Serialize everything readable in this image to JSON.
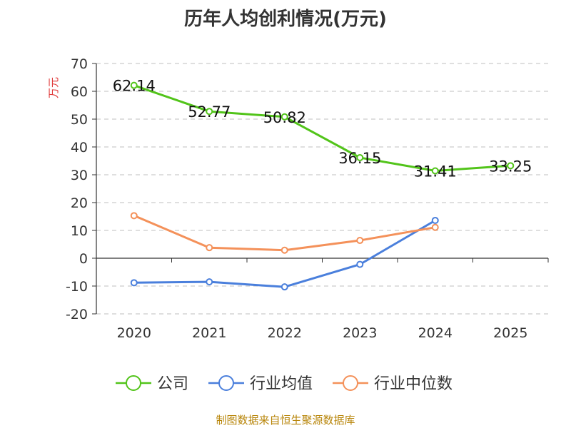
{
  "title": "历年人均创利情况(万元)",
  "footer": "制图数据来自恒生聚源数据库",
  "chart_data": {
    "type": "line",
    "title": "历年人均创利情况(万元)",
    "ylabel": "万元",
    "ylim": [
      -20,
      70
    ],
    "yticks": [
      -20,
      -10,
      0,
      10,
      20,
      30,
      40,
      50,
      60,
      70
    ],
    "categories": [
      "2020",
      "2021",
      "2022",
      "2023",
      "2024",
      "2025"
    ],
    "grid": true,
    "legend_position": "bottom",
    "series": [
      {
        "name": "公司",
        "color": "#52c41a",
        "values": [
          62.14,
          52.77,
          50.82,
          36.15,
          31.41,
          33.25
        ],
        "labels": [
          "62.14",
          "52.77",
          "50.82",
          "36.15",
          "31.41",
          "33.25"
        ],
        "show_labels": true
      },
      {
        "name": "行业均值",
        "color": "#4a7fdc",
        "values": [
          -8.8,
          -8.5,
          -10.3,
          -2.2,
          13.6,
          null
        ],
        "show_labels": false
      },
      {
        "name": "行业中位数",
        "color": "#f4915a",
        "values": [
          15.3,
          3.8,
          2.9,
          6.4,
          11.1,
          null
        ],
        "show_labels": false
      }
    ]
  }
}
